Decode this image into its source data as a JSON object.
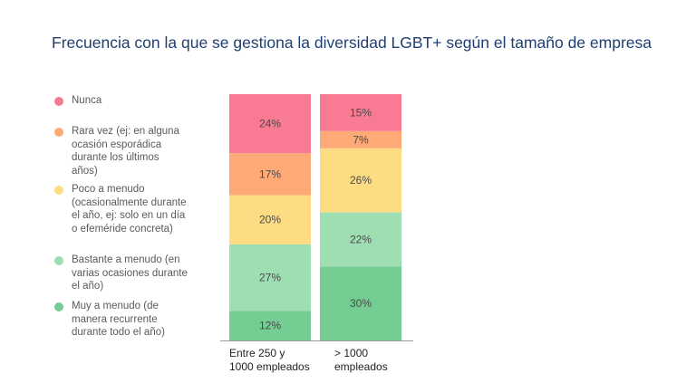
{
  "title": "Frecuencia con la que se gestiona la diversidad LGBT+ según el tamaño de empresa",
  "colors": {
    "nunca": "#f87b93",
    "rara": "#fdaa76",
    "poco": "#fddc84",
    "bastante": "#9edeb2",
    "muy": "#74cd92"
  },
  "legend": [
    {
      "label": "Nunca",
      "color": "#f87b93"
    },
    {
      "label": "Rara vez (ej: en alguna ocasión esporádica durante los últimos años)",
      "color": "#fdaa76"
    },
    {
      "label": "Poco a menudo (ocasionalmente durante el año, ej: solo en un día o efeméride concreta)",
      "color": "#fddc84"
    },
    {
      "label": "Bastante a menudo (en varias ocasiones durante el año)",
      "color": "#9edeb2"
    },
    {
      "label": "Muy a menudo (de manera recurrente durante todo el año)",
      "color": "#74cd92"
    }
  ],
  "chart_data": {
    "type": "bar",
    "stacked": true,
    "title": "Frecuencia con la que se gestiona la diversidad LGBT+ según el tamaño de empresa",
    "categories": [
      "Entre 250 y 1000 empleados",
      "> 1000 empleados"
    ],
    "series": [
      {
        "name": "Muy a menudo (de manera recurrente durante todo el año)",
        "values": [
          12,
          30
        ],
        "labels": [
          "12%",
          "30%"
        ]
      },
      {
        "name": "Bastante a menudo (en varias ocasiones durante el año)",
        "values": [
          27,
          22
        ],
        "labels": [
          "27%",
          "22%"
        ]
      },
      {
        "name": "Poco a menudo (ocasionalmente durante el año, ej: solo en un día o efeméride concreta)",
        "values": [
          20,
          26
        ],
        "labels": [
          "20%",
          "26%"
        ]
      },
      {
        "name": "Rara vez (ej: en alguna ocasión esporádica durante los últimos años)",
        "values": [
          17,
          7
        ],
        "labels": [
          "17%",
          "7%"
        ]
      },
      {
        "name": "Nunca",
        "values": [
          24,
          15
        ],
        "labels": [
          "24%",
          "15%"
        ]
      }
    ],
    "unit": "%",
    "legend_position": "left"
  }
}
